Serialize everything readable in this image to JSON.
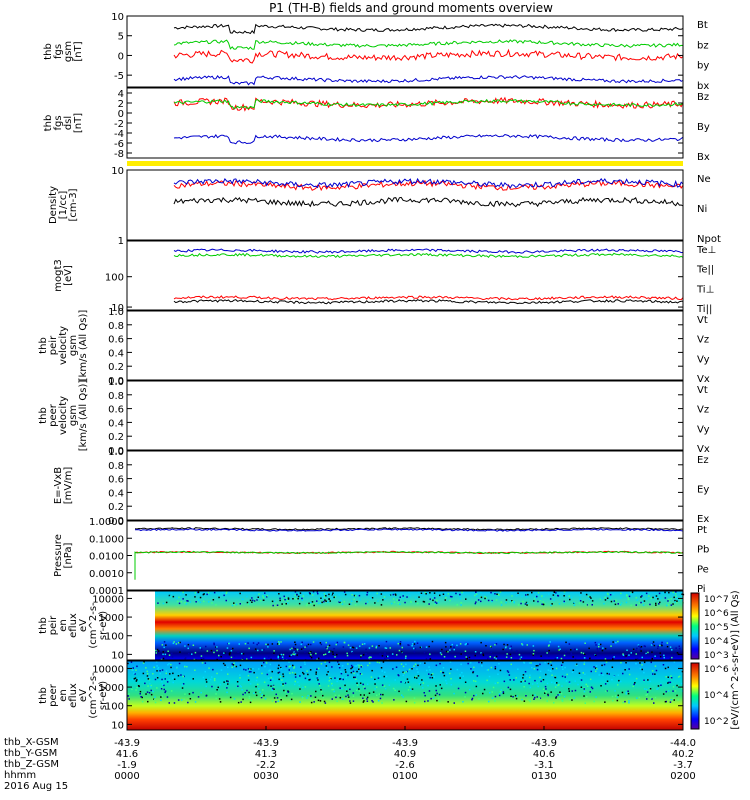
{
  "title": "P1 (TH-B) fields and ground moments overview",
  "date_label": "2016 Aug 15",
  "bottom_rows": [
    {
      "label": "thb_X-GSM",
      "values": [
        "-43.9",
        "-43.9",
        "-43.9",
        "-43.9",
        "-44.0"
      ]
    },
    {
      "label": "thb_Y-GSM",
      "values": [
        "41.6",
        "41.3",
        "40.9",
        "40.6",
        "40.2"
      ]
    },
    {
      "label": "thb_Z-GSM",
      "values": [
        "-1.9",
        "-2.2",
        "-2.6",
        "-3.1",
        "-3.7"
      ]
    },
    {
      "label": "hhmm",
      "values": [
        "0000",
        "0030",
        "0100",
        "0130",
        "0200"
      ]
    }
  ],
  "colorbar": {
    "ticks": [
      "10^7",
      "10^6",
      "10^5",
      "10^4",
      "10^3"
    ],
    "ticks2": [
      "10^6",
      "10^4",
      "10^2"
    ],
    "label": "[eV/(cm^2-s-sr-eV)] (All Qs)"
  },
  "chart_data": [
    {
      "type": "line",
      "name": "fgs-gsm",
      "ylabel": [
        "thb",
        "fgs",
        "gsm",
        "[nT]"
      ],
      "yticks": [
        "10",
        "5",
        "0",
        "-5"
      ],
      "ylim": [
        -8,
        10
      ],
      "series": [
        {
          "name": "Bt",
          "color": "#000000",
          "level": 7
        },
        {
          "name": "bz",
          "color": "#ff0000",
          "level": 0
        },
        {
          "name": "by",
          "color": "#00cc00",
          "level": 3
        },
        {
          "name": "bx",
          "color": "#0000cc",
          "level": -6
        }
      ]
    },
    {
      "type": "line",
      "name": "fgs-dsl",
      "ylabel": [
        "thb",
        "fgs",
        "dsl",
        "[nT]"
      ],
      "yticks": [
        "4",
        "2",
        "0",
        "-2",
        "-4",
        "-6",
        "-8"
      ],
      "ylim": [
        -9,
        5
      ],
      "series": [
        {
          "name": "Bz",
          "color": "#ff0000",
          "level": 2
        },
        {
          "name": "By",
          "color": "#00cc00",
          "level": 2
        },
        {
          "name": "Bx",
          "color": "#0000cc",
          "level": -5
        }
      ]
    },
    {
      "type": "line",
      "name": "density",
      "ylabel": [
        "Density",
        "[1/cc]",
        "[cm-3]"
      ],
      "yticks": [
        "10",
        "1"
      ],
      "ylim": [
        1,
        10
      ],
      "scale": "log",
      "series": [
        {
          "name": "Ne",
          "color": "#ff0000",
          "level": 6
        },
        {
          "name": "Ni",
          "color": "#000000",
          "level": 3.5
        },
        {
          "name": "Npot",
          "color": "#0000cc",
          "level": 6.5
        }
      ]
    },
    {
      "type": "line",
      "name": "temperature",
      "ylabel": [
        "mogt3",
        "[eV]"
      ],
      "yticks": [
        "100",
        "10"
      ],
      "ylim": [
        8,
        1500
      ],
      "scale": "log",
      "series": [
        {
          "name": "Te⊥",
          "color": "#ff0000",
          "level": 20
        },
        {
          "name": "Te||",
          "color": "#000000",
          "level": 15
        },
        {
          "name": "Ti⊥",
          "color": "#0000cc",
          "level": 700
        },
        {
          "name": "Ti||",
          "color": "#00cc00",
          "level": 500
        }
      ]
    },
    {
      "type": "line",
      "name": "ion-velocity",
      "ylabel": [
        "thb",
        "peir",
        "velocity",
        "gsm",
        "[km/s (All Qs)]"
      ],
      "yticks": [
        "1.0",
        "0.8",
        "0.6",
        "0.4",
        "0.2",
        "0.0"
      ],
      "ylim": [
        0,
        1
      ],
      "series": [
        {
          "name": "Vt",
          "color": "#000000"
        },
        {
          "name": "Vz",
          "color": "#ff0000"
        },
        {
          "name": "Vy",
          "color": "#00cc00"
        },
        {
          "name": "Vx",
          "color": "#0000cc"
        }
      ]
    },
    {
      "type": "line",
      "name": "electron-velocity",
      "ylabel": [
        "thb",
        "peer",
        "velocity",
        "gsm",
        "[km/s (All Qs)]"
      ],
      "yticks": [
        "1.0",
        "0.8",
        "0.6",
        "0.4",
        "0.2",
        "0.0"
      ],
      "ylim": [
        0,
        1
      ],
      "series": [
        {
          "name": "Vt",
          "color": "#000000"
        },
        {
          "name": "Vz",
          "color": "#ff0000"
        },
        {
          "name": "Vy",
          "color": "#00cc00"
        },
        {
          "name": "Vx",
          "color": "#0000cc"
        }
      ]
    },
    {
      "type": "line",
      "name": "efield",
      "ylabel": [
        "E=-VxB",
        "[mV/m]"
      ],
      "yticks": [
        "1.0",
        "0.8",
        "0.6",
        "0.4",
        "0.2",
        "0.0"
      ],
      "ylim": [
        0,
        1
      ],
      "series": [
        {
          "name": "Ez",
          "color": "#ff0000"
        },
        {
          "name": "Ey",
          "color": "#00cc00"
        },
        {
          "name": "Ex",
          "color": "#0000cc"
        }
      ]
    },
    {
      "type": "line",
      "name": "pressure",
      "ylabel": [
        "Pressure",
        "[nPa]"
      ],
      "yticks": [
        "1.0000",
        "0.1000",
        "0.0100",
        "0.0010",
        "0.0001"
      ],
      "ylim": [
        0.0001,
        1
      ],
      "scale": "log",
      "series": [
        {
          "name": "Pt",
          "color": "#000000",
          "level": 0.35
        },
        {
          "name": "Pb",
          "color": "#ff0000",
          "level": 0.015
        },
        {
          "name": "Pe",
          "color": "#00cc00",
          "level": 0.015
        },
        {
          "name": "Pi",
          "color": "#0000cc",
          "level": 0.3
        }
      ]
    },
    {
      "type": "heatmap",
      "name": "ion-spectrogram",
      "ylabel": [
        "thb",
        "peir",
        "en",
        "eflux",
        "eV",
        "(cm^2-s-",
        "sr-eV)"
      ],
      "yticks": [
        "10000",
        "1000",
        "100",
        "10"
      ],
      "ylim": [
        5,
        25000
      ],
      "scale": "log"
    },
    {
      "type": "heatmap",
      "name": "electron-spectrogram",
      "ylabel": [
        "thb",
        "peer",
        "en",
        "eflux",
        "eV",
        "(cm^2-s-",
        "sr-eV)"
      ],
      "yticks": [
        "10000",
        "1000",
        "100",
        "10"
      ],
      "ylim": [
        5,
        25000
      ],
      "scale": "log"
    }
  ]
}
